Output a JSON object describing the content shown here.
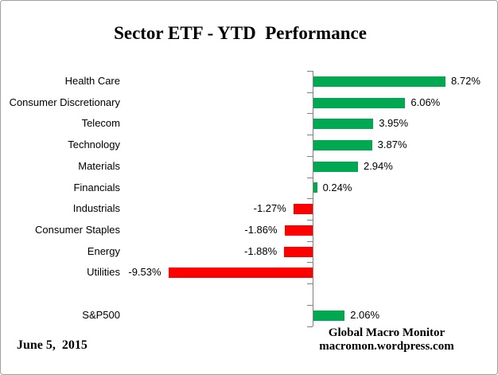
{
  "title": "Sector ETF - YTD  Performance",
  "chart_data": {
    "type": "bar",
    "orientation": "horizontal",
    "title": "Sector ETF - YTD Performance",
    "unit": "percent",
    "categories": [
      "Health Care",
      "Consumer Discretionary",
      "Telecom",
      "Technology",
      "Materials",
      "Financials",
      "Industrials",
      "Consumer Staples",
      "Energy",
      "Utilities",
      "",
      "S&P500"
    ],
    "values": [
      8.72,
      6.06,
      3.95,
      3.87,
      2.94,
      0.24,
      -1.27,
      -1.86,
      -1.88,
      -9.53,
      null,
      2.06
    ],
    "value_labels": [
      "8.72%",
      "6.06%",
      "3.95%",
      "3.87%",
      "2.94%",
      "0.24%",
      "-1.27%",
      "-1.86%",
      "-1.88%",
      "-9.53%",
      "",
      "2.06%"
    ],
    "positive_color": "#00A852",
    "negative_color": "#FF0000",
    "axis_color": "#808080",
    "xlim": [
      -10,
      9.5
    ],
    "grid": false,
    "legend": false
  },
  "footer": {
    "date": "June 5,  2015",
    "source_line1": "Global Macro Monitor",
    "source_line2": "macromon.wordpress.com"
  }
}
